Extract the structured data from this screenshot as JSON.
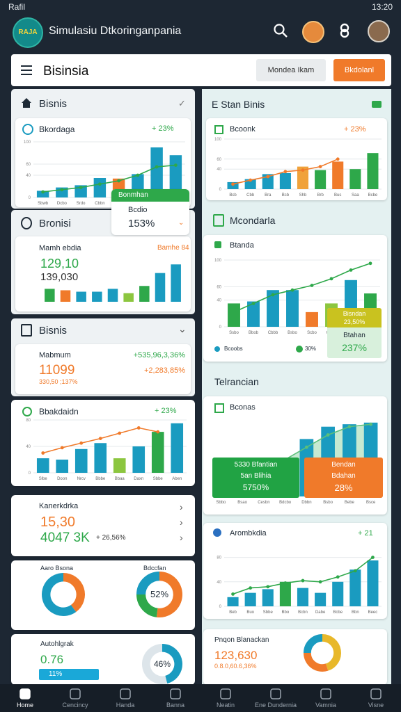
{
  "status_bar": {
    "carrier": "Rafil",
    "time": "13:20"
  },
  "app_header": {
    "logo": "RAJA",
    "title": "Simulasiu Dtkoringanpania"
  },
  "toolbar": {
    "title": "Bisinsia",
    "secondary_button": "Mondea Ikam",
    "primary_button": "Bkdolanl"
  },
  "left_cards": [
    {
      "header": "Bisnis",
      "title": "Bkordaga",
      "change": "+ 23%",
      "chart": {
        "type": "bar",
        "ylim": [
          0,
          100
        ],
        "yticks": [
          0,
          40,
          60,
          100
        ],
        "categories": [
          "Sbwb",
          "Dcbo",
          "Srdo",
          "Cbbn",
          "Bbba",
          "Dboo",
          "Cbbn",
          "Bcbe"
        ],
        "values": [
          12,
          18,
          22,
          35,
          34,
          42,
          90,
          76
        ],
        "colors": [
          "#1a9bc0",
          "#1a9bc0",
          "#1a9bc0",
          "#1a9bc0",
          "#f07a2a",
          "#1a9bc0",
          "#1a9bc0",
          "#1a9bc0"
        ],
        "line": {
          "values": [
            10,
            14,
            18,
            24,
            30,
            40,
            55,
            58
          ],
          "color": "#2ea84a",
          "area": false
        }
      }
    },
    {
      "header": "Bronisi",
      "title": "Mamh ebdia",
      "tag": "Bamhe 84",
      "value1": "129,10",
      "value2": "139,030",
      "chart": {
        "type": "bar",
        "ylim": [
          0,
          60
        ],
        "values": [
          18,
          16,
          14,
          14,
          18,
          12,
          22,
          40,
          52
        ],
        "colors": [
          "#2ea84a",
          "#f07a2a",
          "#1a9bc0",
          "#1a9bc0",
          "#1a9bc0",
          "#8cc63f",
          "#2ea84a",
          "#1a9bc0",
          "#1a9bc0"
        ]
      }
    },
    {
      "header": "Bisnis",
      "row_label": "Mabmum",
      "row_value": "+535,96,3,36%",
      "big_value": "11099",
      "big_change": "+2,283,85%",
      "footnote": "330,50 ;137%"
    },
    {
      "title": "Bbakdaidn",
      "change": "+ 23%",
      "chart": {
        "type": "bar",
        "ylim": [
          0,
          80
        ],
        "yticks": [
          0,
          40,
          80
        ],
        "categories": [
          "Slbe",
          "Doon",
          "Nrcv",
          "Bbbe",
          "Bbaa",
          "Daxn",
          "Sbbe",
          "Aben"
        ],
        "values": [
          22,
          20,
          36,
          45,
          22,
          40,
          62,
          75
        ],
        "colors": [
          "#1a9bc0",
          "#1a9bc0",
          "#1a9bc0",
          "#1a9bc0",
          "#8cc63f",
          "#1a9bc0",
          "#2ea84a",
          "#1a9bc0"
        ],
        "line": {
          "values": [
            30,
            38,
            45,
            52,
            60,
            68,
            62,
            null
          ],
          "color": "#f07a2a",
          "area": false
        }
      }
    },
    {
      "title": "Kanerkdrka",
      "value1": "15,30",
      "value2": "4047 3K",
      "change": "+ 26,56%"
    },
    {
      "donut1_label": "Aaro Bsona",
      "donut1": {
        "type": "donut",
        "values": [
          40,
          60
        ],
        "colors": [
          "#f07a2a",
          "#1a9bc0"
        ]
      },
      "donut2_label": "Bdccfan",
      "donut2": {
        "type": "donut",
        "values": [
          52,
          23,
          25
        ],
        "colors": [
          "#f07a2a",
          "#2ea84a",
          "#1a9bc0"
        ],
        "center_label": "52%"
      }
    },
    {
      "title": "Autohlgrak",
      "value": "0.76",
      "bar_label": "11%",
      "donut": {
        "type": "donut",
        "values": [
          46,
          54
        ],
        "colors": [
          "#1a9bc0",
          "#dde5ea"
        ],
        "center_label": "46%"
      }
    }
  ],
  "popup": {
    "title": "Bonmhan",
    "label": "Bcdio",
    "value": "153%"
  },
  "right_cards": [
    {
      "header": "E Stan Binis",
      "title": "Bcoonk",
      "change": "+ 23%",
      "chart": {
        "type": "bar",
        "ylim": [
          0,
          100
        ],
        "yticks": [
          0,
          40,
          60,
          100
        ],
        "categories": [
          "Bcb",
          "Cbb",
          "Bra",
          "Bcb",
          "Shb",
          "Brb",
          "Bus",
          "Saa",
          "Bcbe"
        ],
        "values": [
          14,
          20,
          30,
          32,
          45,
          38,
          55,
          40,
          72
        ],
        "colors": [
          "#1a9bc0",
          "#1a9bc0",
          "#1a9bc0",
          "#1a9bc0",
          "#f0a23a",
          "#2ea84a",
          "#f07a2a",
          "#2ea84a",
          "#2ea84a"
        ],
        "line": {
          "values": [
            10,
            18,
            25,
            35,
            38,
            45,
            60,
            null,
            null
          ],
          "color": "#f07a2a",
          "area": false
        }
      }
    },
    {
      "header": "Mcondarla",
      "title": "Btanda",
      "chart": {
        "type": "bar",
        "ylim": [
          0,
          100
        ],
        "yticks": [
          0,
          40,
          60,
          100
        ],
        "categories": [
          "Ssbo",
          "Bbob",
          "Cbbb",
          "Bsbo",
          "Scbo",
          "Gebe",
          "Bsbe",
          "Bcee"
        ],
        "values": [
          35,
          38,
          55,
          55,
          22,
          35,
          70,
          50
        ],
        "colors": [
          "#2ea84a",
          "#1a9bc0",
          "#1a9bc0",
          "#1a9bc0",
          "#f07a2a",
          "#8cc63f",
          "#1a9bc0",
          "#2ea84a"
        ],
        "line": {
          "values": [
            22,
            35,
            48,
            55,
            62,
            72,
            85,
            95
          ],
          "color": "#2ea84a",
          "area": false
        }
      },
      "overlay_top": "Bisndan",
      "overlay_top_value": "23,50%",
      "overlay_bottom": "Btahan",
      "overlay_bottom_value": "237%",
      "legend": [
        "Bcoobs",
        "30%"
      ]
    },
    {
      "header": "Telrancian",
      "title": "Bconas",
      "chart": {
        "type": "bar",
        "ylim": [
          0,
          100
        ],
        "categories": [
          "Sbbo",
          "Bsao",
          "Cesbn",
          "Bdcbo",
          "Dbbn",
          "Bsbo",
          "Bebe",
          "Bsce"
        ],
        "values": [
          0,
          0,
          5,
          15,
          70,
          85,
          88,
          90
        ],
        "colors": [
          "#1a9bc0",
          "#1a9bc0",
          "#1a9bc0",
          "#1a9bc0",
          "#1a9bc0",
          "#1a9bc0",
          "#1a9bc0",
          "#1a9bc0"
        ],
        "line": {
          "values": [
            10,
            20,
            30,
            45,
            60,
            75,
            85,
            88
          ],
          "color": "#5cbf7a",
          "area": true
        }
      },
      "green_box": [
        "5330 Bfantian",
        "5an Blihia",
        "5750%"
      ],
      "orange_box": [
        "Bendan",
        "Bdahan",
        "28%"
      ]
    },
    {
      "title": "Arombkdia",
      "change": "+ 21",
      "chart": {
        "type": "bar",
        "ylim": [
          0,
          100
        ],
        "yticks": [
          0,
          40,
          80
        ],
        "categories": [
          "Beb",
          "Buo",
          "Sbbe",
          "Bbo",
          "Bcbn",
          "Dabe",
          "Bcbe",
          "Bbn",
          "Beec"
        ],
        "values": [
          15,
          22,
          28,
          40,
          30,
          22,
          40,
          60,
          75
        ],
        "colors": [
          "#1a9bc0",
          "#1a9bc0",
          "#1a9bc0",
          "#2ea84a",
          "#1a9bc0",
          "#1a9bc0",
          "#1a9bc0",
          "#1a9bc0",
          "#1a9bc0"
        ],
        "line": {
          "values": [
            20,
            30,
            32,
            38,
            42,
            40,
            48,
            58,
            80
          ],
          "color": "#2ea84a",
          "area": false
        }
      }
    },
    {
      "title": "Pnqon Blanackan",
      "value": "123,630",
      "sub": "0.8.0,60.6,36%",
      "donut": {
        "type": "donut",
        "values": [
          45,
          30,
          25
        ],
        "colors": [
          "#e8b82a",
          "#f07a2a",
          "#1a9bc0"
        ]
      }
    }
  ],
  "nav": [
    "Home",
    "Cencincy",
    "Handa",
    "Banna",
    "Neatin",
    "Ene Dundernia",
    "Vamnia",
    "Visne"
  ]
}
